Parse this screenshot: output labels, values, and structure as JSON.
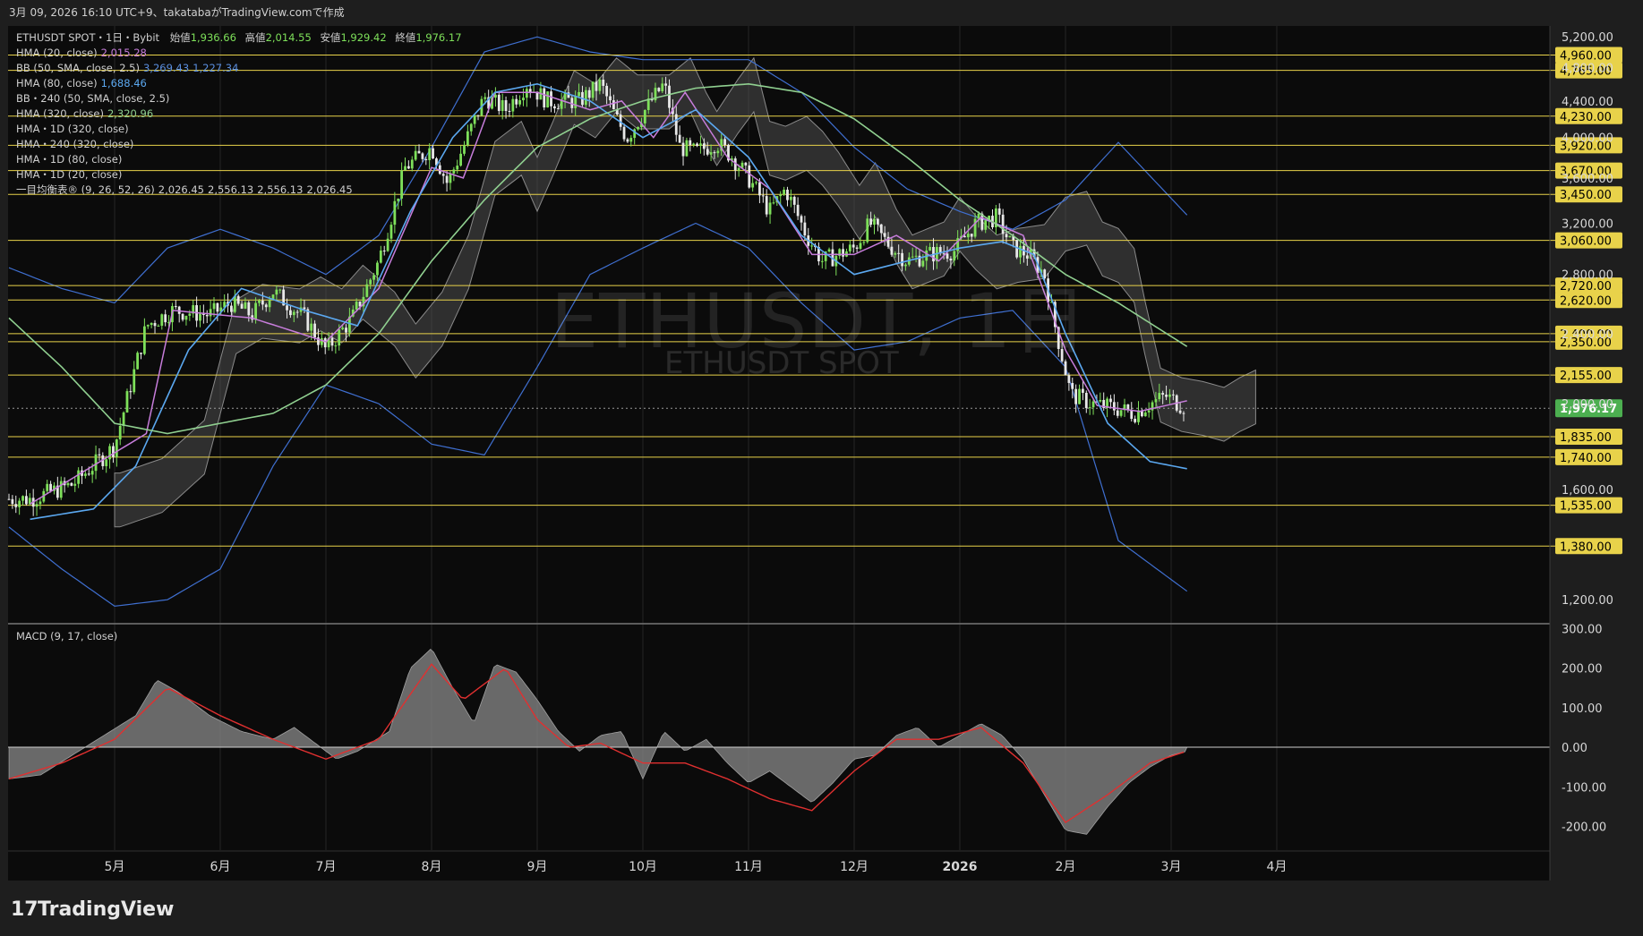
{
  "header": {
    "timestamp": "3月 09, 2026 16:10 UTC+9、takatabaがTradingView.comで作成"
  },
  "legend": {
    "symbol_line": "ETHUSDT SPOT・1日・Bybit",
    "open_label": "始値",
    "open": "1,936.66",
    "high_label": "高値",
    "high": "2,014.55",
    "low_label": "安値",
    "low": "1,929.42",
    "close_label": "終値",
    "close": "1,976.17",
    "indicators": [
      {
        "label": "HMA (20, close)",
        "values": [
          "2,015.28"
        ],
        "color": "#c77ddb"
      },
      {
        "label": "BB (50, SMA, close, 2.5)",
        "values": [
          "3,269.43",
          "1,227.34"
        ],
        "color": "#5b8fe0"
      },
      {
        "label": "HMA (80, close)",
        "values": [
          "1,688.46"
        ],
        "color": "#5ba8f0"
      },
      {
        "label": "BB・240 (50, SMA, close, 2.5)",
        "values": [],
        "color": "#cfcfcf"
      },
      {
        "label": "HMA (320, close)",
        "values": [
          "2,320.96"
        ],
        "color": "#90d090"
      },
      {
        "label": "HMA・1D (320, close)",
        "values": [],
        "color": "#cfcfcf"
      },
      {
        "label": "HMA・240 (320, close)",
        "values": [],
        "color": "#cfcfcf"
      },
      {
        "label": "HMA・1D (80, close)",
        "values": [],
        "color": "#cfcfcf"
      },
      {
        "label": "HMA・1D (20, close)",
        "values": [],
        "color": "#cfcfcf"
      },
      {
        "label": "一目均衡表® (9, 26, 52, 26)",
        "values": [
          "2,026.45",
          "2,556.13",
          "2,556.13",
          "2,026.45"
        ],
        "color": "#cfcfcf"
      }
    ],
    "macd_label": "MACD (9, 17, close)"
  },
  "watermark": {
    "symbol": "ETHUSDT, 1日",
    "name": "ETHUSDT SPOT"
  },
  "brand": {
    "name": "TradingView"
  },
  "colors": {
    "background": "#1e1e1e",
    "pane": "#0b0b0b",
    "grid": "#262626",
    "level": "#e8d24a",
    "candle_up": "#7ee05a",
    "candle_down": "#e8e8e8",
    "current_price": "#4caf50",
    "hma20": "#c77ddb",
    "hma80": "#5ba8f0",
    "hma320": "#90d090",
    "bb": "#3f6fd0",
    "cloud": "#5a5a5a",
    "macd_hist": "#8a8a8a",
    "macd_signal": "#e03030"
  },
  "chart_data": {
    "type": "candlestick",
    "price_axis": {
      "scale": "log",
      "range": [
        1130,
        5350
      ],
      "ticks": [
        5200,
        4800,
        4400,
        4000,
        3600,
        3200,
        2800,
        2400,
        2000,
        1600,
        1200
      ],
      "tick_labels": [
        "5,200.00",
        "4,800.00",
        "4,400.00",
        "4,000.00",
        "3,600.00",
        "3,200.00",
        "2,800.00",
        "2,400.00",
        "2,000.00",
        "1,600.00",
        "1,200.00"
      ]
    },
    "levels": [
      4960,
      4765,
      4230,
      3920,
      3670,
      3450,
      3060,
      2720,
      2620,
      2400,
      2350,
      2155,
      1835,
      1740,
      1535,
      1380
    ],
    "level_labels": [
      "4,960.00",
      "4,765.00",
      "4,230.00",
      "3,920.00",
      "3,670.00",
      "3,450.00",
      "3,060.00",
      "2,720.00",
      "2,620.00",
      "2,400.00",
      "2,350.00",
      "2,155.00",
      "1,835.00",
      "1,740.00",
      "1,535.00",
      "1,380.00"
    ],
    "current_price": 1976.17,
    "current_price_label": "1,976.17",
    "time_axis": {
      "labels": [
        "5月",
        "6月",
        "7月",
        "8月",
        "9月",
        "10月",
        "11月",
        "12月",
        "2026",
        "2月",
        "3月",
        "4月"
      ],
      "month_index": [
        1,
        2,
        3,
        4,
        5,
        6,
        7,
        8,
        9,
        10,
        11,
        12
      ]
    },
    "close_path": [
      [
        0.2,
        1560
      ],
      [
        0.6,
        1620
      ],
      [
        1.0,
        1790
      ],
      [
        1.3,
        2450
      ],
      [
        1.55,
        2550
      ],
      [
        1.9,
        2520
      ],
      [
        2.1,
        2600
      ],
      [
        2.3,
        2520
      ],
      [
        2.5,
        2680
      ],
      [
        2.8,
        2500
      ],
      [
        3.0,
        2300
      ],
      [
        3.25,
        2500
      ],
      [
        3.5,
        2900
      ],
      [
        3.75,
        3700
      ],
      [
        4.0,
        3900
      ],
      [
        4.15,
        3550
      ],
      [
        4.3,
        3900
      ],
      [
        4.5,
        4450
      ],
      [
        4.7,
        4300
      ],
      [
        4.9,
        4600
      ],
      [
        5.1,
        4400
      ],
      [
        5.4,
        4400
      ],
      [
        5.6,
        4600
      ],
      [
        5.75,
        4200
      ],
      [
        5.85,
        4000
      ],
      [
        6.05,
        4350
      ],
      [
        6.2,
        4600
      ],
      [
        6.35,
        3900
      ],
      [
        6.5,
        3850
      ],
      [
        6.7,
        3950
      ],
      [
        6.85,
        3800
      ],
      [
        7.0,
        3600
      ],
      [
        7.2,
        3300
      ],
      [
        7.35,
        3500
      ],
      [
        7.55,
        3100
      ],
      [
        7.7,
        2900
      ],
      [
        7.85,
        2950
      ],
      [
        8.0,
        3000
      ],
      [
        8.15,
        3200
      ],
      [
        8.3,
        3050
      ],
      [
        8.5,
        2900
      ],
      [
        8.7,
        2950
      ],
      [
        8.95,
        2980
      ],
      [
        9.15,
        3200
      ],
      [
        9.35,
        3250
      ],
      [
        9.5,
        3000
      ],
      [
        9.65,
        2950
      ],
      [
        9.8,
        2800
      ],
      [
        9.9,
        2450
      ],
      [
        10.05,
        2050
      ],
      [
        10.25,
        2000
      ],
      [
        10.45,
        1980
      ],
      [
        10.65,
        1950
      ],
      [
        10.8,
        2000
      ],
      [
        10.95,
        2040
      ],
      [
        11.15,
        1976
      ]
    ],
    "series": [
      {
        "name": "HMA (20, close)",
        "x": [
          0.2,
          1.3,
          1.55,
          2.3,
          3.0,
          3.5,
          4.0,
          4.3,
          4.6,
          5.0,
          5.5,
          5.8,
          6.1,
          6.4,
          6.8,
          7.2,
          7.6,
          8.0,
          8.4,
          8.8,
          9.2,
          9.6,
          10.0,
          10.3,
          10.7,
          11.15
        ],
        "values": [
          1540,
          1850,
          2550,
          2500,
          2350,
          2700,
          3700,
          3600,
          4500,
          4500,
          4300,
          4400,
          4000,
          4500,
          3800,
          3500,
          2950,
          2950,
          3100,
          2900,
          3250,
          3100,
          2300,
          1990,
          1960,
          2015
        ]
      },
      {
        "name": "HMA (80, close)",
        "x": [
          0.2,
          0.8,
          1.2,
          1.7,
          2.2,
          2.8,
          3.3,
          3.8,
          4.2,
          4.6,
          5.0,
          5.5,
          6.0,
          6.5,
          7.0,
          7.5,
          8.0,
          8.5,
          9.0,
          9.4,
          9.7,
          10.0,
          10.4,
          10.8,
          11.15
        ],
        "values": [
          1480,
          1520,
          1700,
          2300,
          2700,
          2550,
          2450,
          3300,
          4000,
          4500,
          4600,
          4400,
          4000,
          4300,
          3800,
          3100,
          2800,
          2900,
          3000,
          3050,
          2950,
          2400,
          1900,
          1720,
          1688
        ]
      },
      {
        "name": "HMA (320, close)",
        "x": [
          0.0,
          0.5,
          1.0,
          1.5,
          2.0,
          2.5,
          3.0,
          3.5,
          4.0,
          4.5,
          5.0,
          5.5,
          6.0,
          6.5,
          7.0,
          7.5,
          8.0,
          8.5,
          9.0,
          9.5,
          10.0,
          10.5,
          11.15
        ],
        "values": [
          2500,
          2200,
          1900,
          1850,
          1900,
          1950,
          2100,
          2400,
          2900,
          3400,
          3900,
          4200,
          4400,
          4550,
          4600,
          4500,
          4200,
          3800,
          3400,
          3100,
          2800,
          2600,
          2321
        ]
      },
      {
        "name": "BB upper",
        "x": [
          0.0,
          0.5,
          1.0,
          1.5,
          2.0,
          2.5,
          3.0,
          3.5,
          4.0,
          4.5,
          5.0,
          5.5,
          6.0,
          6.5,
          7.0,
          7.5,
          8.0,
          8.5,
          9.0,
          9.5,
          10.0,
          10.5,
          11.15
        ],
        "values": [
          2850,
          2700,
          2600,
          3000,
          3150,
          3000,
          2800,
          3100,
          3900,
          5000,
          5200,
          5000,
          4900,
          4900,
          4900,
          4500,
          3900,
          3500,
          3300,
          3150,
          3400,
          3950,
          3269
        ]
      },
      {
        "name": "BB lower",
        "x": [
          0.0,
          0.5,
          1.0,
          1.5,
          2.0,
          2.5,
          3.0,
          3.5,
          4.0,
          4.5,
          5.0,
          5.5,
          6.0,
          6.5,
          7.0,
          7.5,
          8.0,
          8.5,
          9.0,
          9.5,
          10.0,
          10.5,
          11.15
        ],
        "values": [
          1450,
          1300,
          1180,
          1200,
          1300,
          1700,
          2100,
          2000,
          1800,
          1750,
          2200,
          2800,
          3000,
          3200,
          3000,
          2600,
          2300,
          2350,
          2500,
          2550,
          2200,
          1400,
          1227
        ]
      }
    ],
    "macd": {
      "range": [
        -260,
        310
      ],
      "ticks": [
        300,
        200,
        100,
        0,
        -100,
        -200
      ],
      "tick_labels": [
        "300.00",
        "200.00",
        "100.00",
        "0.00",
        "-100.00",
        "-200.00"
      ],
      "hist_x": [
        0.0,
        0.3,
        0.6,
        0.9,
        1.2,
        1.4,
        1.6,
        1.9,
        2.2,
        2.5,
        2.7,
        2.9,
        3.1,
        3.3,
        3.6,
        3.8,
        4.0,
        4.2,
        4.4,
        4.6,
        4.8,
        5.0,
        5.2,
        5.4,
        5.6,
        5.8,
        6.0,
        6.2,
        6.4,
        6.6,
        6.8,
        7.0,
        7.2,
        7.4,
        7.6,
        7.8,
        8.0,
        8.2,
        8.4,
        8.6,
        8.8,
        9.0,
        9.2,
        9.4,
        9.6,
        9.8,
        10.0,
        10.2,
        10.4,
        10.6,
        10.8,
        11.0,
        11.15
      ],
      "hist_values": [
        -80,
        -70,
        -20,
        30,
        80,
        170,
        140,
        80,
        40,
        20,
        50,
        10,
        -30,
        -10,
        40,
        200,
        250,
        150,
        60,
        210,
        190,
        120,
        40,
        -10,
        30,
        40,
        -80,
        40,
        -10,
        20,
        -40,
        -90,
        -60,
        -100,
        -140,
        -90,
        -30,
        -20,
        30,
        50,
        0,
        30,
        60,
        30,
        -30,
        -120,
        -210,
        -220,
        -150,
        -90,
        -50,
        -20,
        -10
      ],
      "signal_x": [
        0.0,
        0.5,
        1.0,
        1.5,
        2.0,
        2.5,
        3.0,
        3.5,
        4.0,
        4.3,
        4.7,
        5.0,
        5.3,
        5.6,
        6.0,
        6.4,
        6.8,
        7.2,
        7.6,
        8.0,
        8.4,
        8.8,
        9.2,
        9.6,
        10.0,
        10.4,
        10.8,
        11.15
      ],
      "signal_values": [
        -80,
        -40,
        20,
        150,
        80,
        20,
        -30,
        20,
        210,
        120,
        200,
        70,
        0,
        10,
        -40,
        -40,
        -80,
        -130,
        -160,
        -60,
        20,
        20,
        50,
        -40,
        -190,
        -120,
        -40,
        -10
      ]
    }
  }
}
